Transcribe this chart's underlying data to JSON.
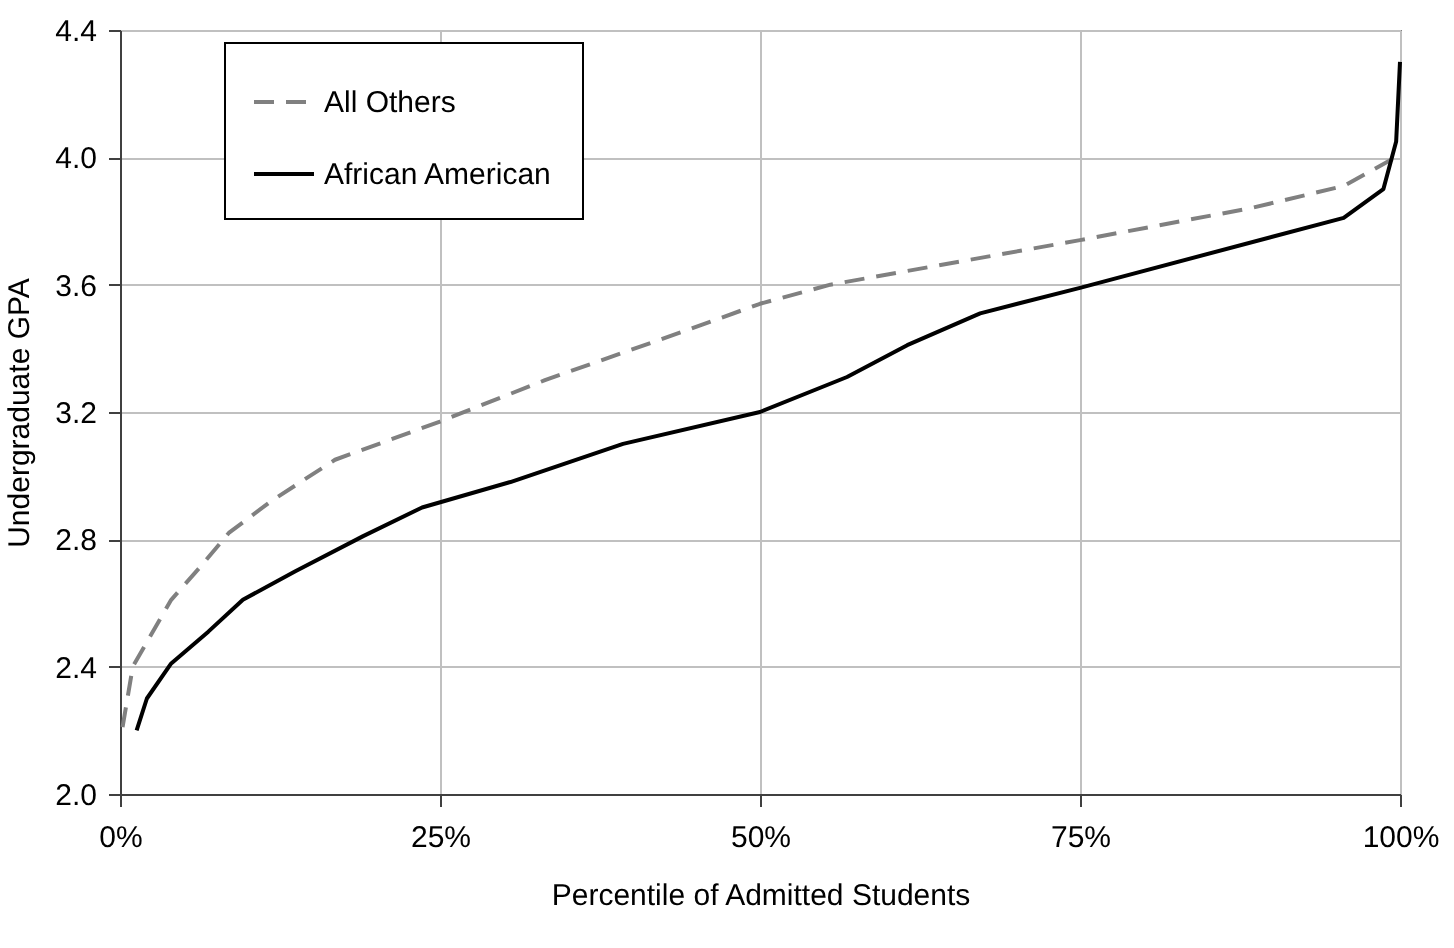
{
  "chart_data": {
    "type": "line",
    "xlabel": "Percentile of Admitted Students",
    "ylabel": "Undergraduate GPA",
    "xlim": [
      0,
      100
    ],
    "xticks": [
      {
        "value": 0,
        "label": "0%"
      },
      {
        "value": 25,
        "label": "25%"
      },
      {
        "value": 50,
        "label": "50%"
      },
      {
        "value": 75,
        "label": "75%"
      },
      {
        "value": 100,
        "label": "100%"
      }
    ],
    "ylim": [
      2.0,
      4.4
    ],
    "yticks": [
      {
        "value": 2.0,
        "label": "2.0"
      },
      {
        "value": 2.4,
        "label": "2.4"
      },
      {
        "value": 2.8,
        "label": "2.8"
      },
      {
        "value": 3.2,
        "label": "3.2"
      },
      {
        "value": 3.6,
        "label": "3.6"
      },
      {
        "value": 4.0,
        "label": "4.0"
      },
      {
        "value": 4.4,
        "label": "4.4"
      }
    ],
    "grid": true,
    "legend": "top left",
    "marker": "none",
    "series": [
      {
        "name": "All Others",
        "color": "#808080",
        "line_style": "dashed",
        "x": [
          0.2,
          1.0,
          4.0,
          6.2,
          8.5,
          11.8,
          16.8,
          25,
          33.2,
          44.5,
          50,
          55.5,
          75,
          88.3,
          95.6,
          99.2,
          99.7
        ],
        "values": [
          2.21,
          2.4,
          2.61,
          2.71,
          2.82,
          2.92,
          3.05,
          3.17,
          3.3,
          3.46,
          3.54,
          3.6,
          3.74,
          3.84,
          3.91,
          3.99,
          4.0
        ]
      },
      {
        "name": "African American",
        "color": "#000000",
        "line_style": "solid",
        "x": [
          1.3,
          2.1,
          4.0,
          6.9,
          9.6,
          13.7,
          19.0,
          23.6,
          30.5,
          39.3,
          50,
          56.8,
          61.5,
          67.2,
          75,
          95.6,
          98.7,
          99.7,
          100
        ],
        "values": [
          2.2,
          2.3,
          2.41,
          2.51,
          2.61,
          2.7,
          2.81,
          2.9,
          2.98,
          3.1,
          3.2,
          3.31,
          3.41,
          3.51,
          3.59,
          3.81,
          3.9,
          4.05,
          4.3
        ]
      }
    ]
  }
}
